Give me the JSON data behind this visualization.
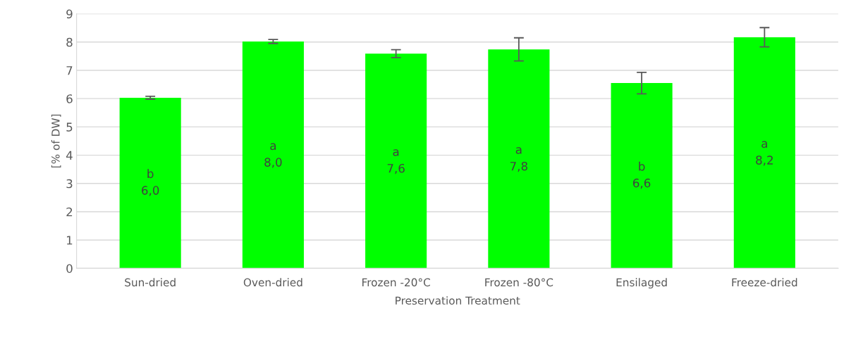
{
  "chart_data": {
    "type": "bar",
    "xlabel": "Preservation Treatment",
    "ylabel": "[% of DW]",
    "categories": [
      "Sun-dried",
      "Oven-dried",
      "Frozen -20°C",
      "Frozen -80°C",
      "Ensilaged",
      "Freeze-dried"
    ],
    "values": [
      6.03,
      8.02,
      7.59,
      7.74,
      6.55,
      8.17
    ],
    "errors": [
      0.05,
      0.07,
      0.14,
      0.41,
      0.38,
      0.34
    ],
    "value_labels": [
      "b\n6,0",
      "a\n8,0",
      "a\n7,6",
      "a\n7,8",
      "b\n6,6",
      "a\n8,2"
    ],
    "color": "#00ff00",
    "ylim": [
      0,
      9
    ],
    "yticks": [
      0,
      1,
      2,
      3,
      4,
      5,
      6,
      7,
      8,
      9
    ],
    "grid": "y",
    "legend": false
  }
}
